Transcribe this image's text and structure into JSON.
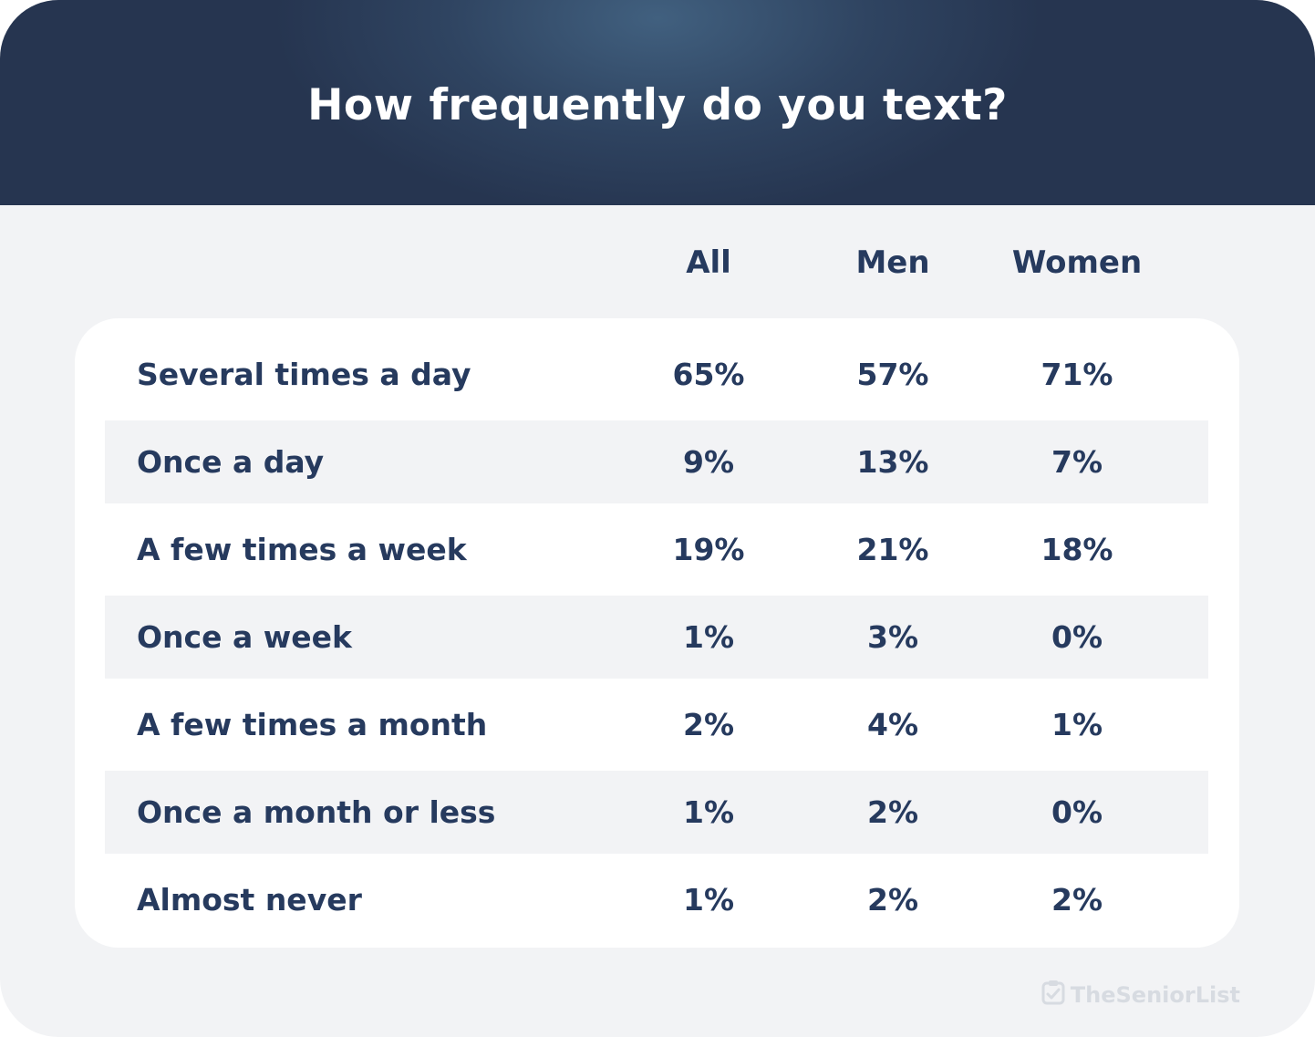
{
  "title": "How frequently do you text?",
  "columns": [
    "All",
    "Men",
    "Women"
  ],
  "brand": "TheSeniorList",
  "chart_data": {
    "type": "table",
    "title": "How frequently do you text?",
    "columns": [
      "All",
      "Men",
      "Women"
    ],
    "rows": [
      {
        "label": "Several times a day",
        "values": [
          "65%",
          "57%",
          "71%"
        ]
      },
      {
        "label": "Once a day",
        "values": [
          "9%",
          "13%",
          "7%"
        ]
      },
      {
        "label": "A few times a week",
        "values": [
          "19%",
          "21%",
          "18%"
        ]
      },
      {
        "label": "Once a week",
        "values": [
          "1%",
          "3%",
          "0%"
        ]
      },
      {
        "label": "A few times a month",
        "values": [
          "2%",
          "4%",
          "1%"
        ]
      },
      {
        "label": "Once a month or less",
        "values": [
          "1%",
          "2%",
          "0%"
        ]
      },
      {
        "label": "Almost never",
        "values": [
          "1%",
          "2%",
          "2%"
        ]
      }
    ]
  },
  "colors": {
    "header": "#2f4461",
    "text": "#263a5e",
    "row_shade": "#f2f3f5"
  }
}
